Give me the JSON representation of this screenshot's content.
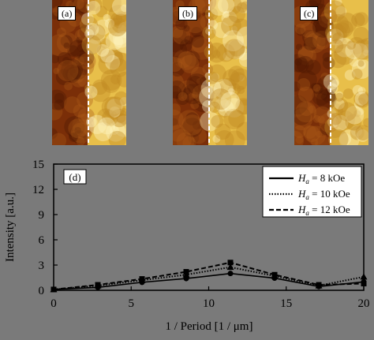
{
  "panels": [
    {
      "label": "(a)",
      "dark": "#7a2e08",
      "light": "#e8bf4a"
    },
    {
      "label": "(b)",
      "dark": "#7a2e08",
      "light": "#e8bf4a"
    },
    {
      "label": "(c)",
      "dark": "#7a2e08",
      "light": "#e8bf4a"
    }
  ],
  "chart_data": {
    "type": "line",
    "panel_label": "(d)",
    "xlabel": "1 / Period [1 / μm]",
    "ylabel": "Intensity [a.u.]",
    "xlim": [
      0,
      20
    ],
    "ylim": [
      0,
      15
    ],
    "xticks": [
      "0",
      "5",
      "10",
      "15",
      "20"
    ],
    "yticks": [
      "0",
      "3",
      "6",
      "9",
      "12",
      "15"
    ],
    "grid": false,
    "legend_position": "top-right",
    "series": [
      {
        "name": "H_a = 8 kOe",
        "label_main": "H",
        "label_sub": "a",
        "label_rest": " = 8 kOe",
        "style": "solid",
        "marker": "circle",
        "x": [
          0,
          2.85,
          5.7,
          8.55,
          11.4,
          14.25,
          17.1,
          20
        ],
        "y": [
          0.1,
          0.35,
          0.95,
          1.4,
          2.0,
          1.45,
          0.45,
          1.0
        ]
      },
      {
        "name": "H_a = 10 kOe",
        "label_main": "H",
        "label_sub": "a",
        "label_rest": " = 10 kOe",
        "style": "dotted",
        "marker": "triangle",
        "x": [
          0,
          2.85,
          5.7,
          8.55,
          11.4,
          14.25,
          17.1,
          20
        ],
        "y": [
          0.1,
          0.55,
          1.2,
          1.85,
          2.75,
          1.7,
          0.55,
          1.6
        ]
      },
      {
        "name": "H_a = 12 kOe",
        "label_main": "H",
        "label_sub": "a",
        "label_rest": " = 12 kOe",
        "style": "dashed",
        "marker": "square",
        "x": [
          0,
          2.85,
          5.7,
          8.55,
          11.4,
          14.25,
          17.1,
          20
        ],
        "y": [
          0.1,
          0.65,
          1.35,
          2.2,
          3.3,
          1.85,
          0.65,
          0.8
        ]
      }
    ]
  }
}
